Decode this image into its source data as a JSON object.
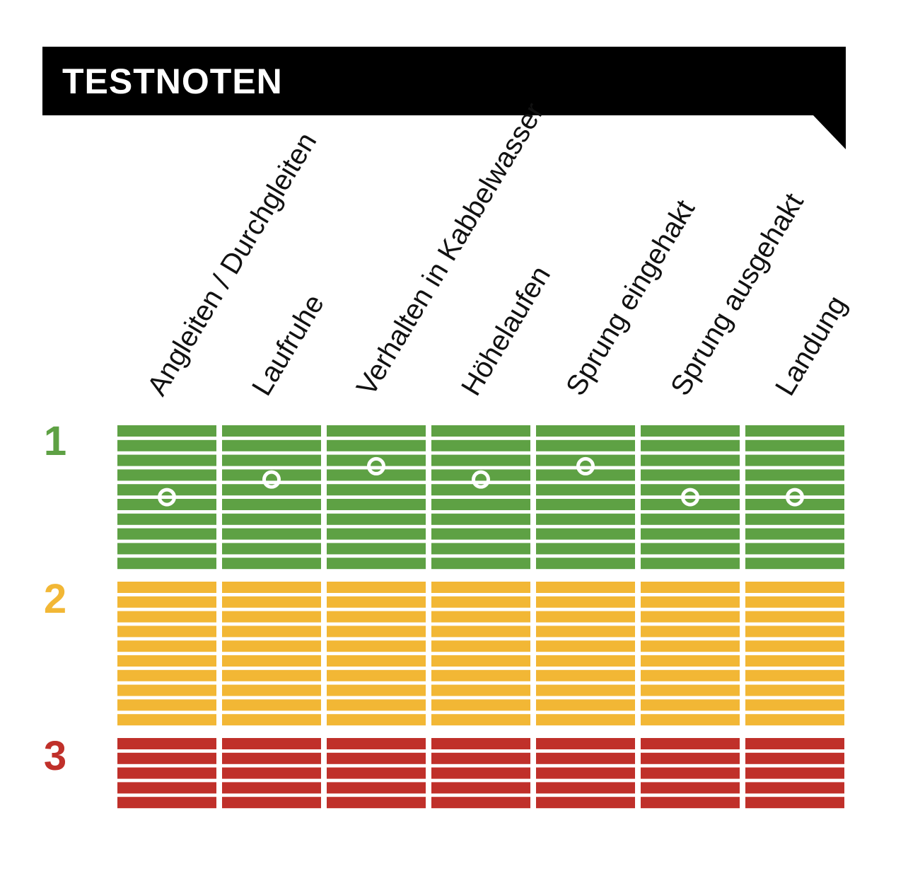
{
  "header": {
    "title": "TESTNOTEN"
  },
  "chart_data": {
    "type": "table",
    "columns": [
      "Angleiten / Durchgleiten",
      "Laufruhe",
      "Verhalten in Kabbelwasser",
      "Höhelaufen",
      "Sprung eingehakt",
      "Sprung ausgehakt",
      "Landung"
    ],
    "grades": [
      {
        "label": "1",
        "color": "#5ea144",
        "steps": 10
      },
      {
        "label": "2",
        "color": "#f2b735",
        "steps": 10
      },
      {
        "label": "3",
        "color": "#c0302a",
        "steps": 5
      }
    ],
    "scale_direction": "top = best (1), bottom = worst (3)",
    "values": [
      1.45,
      1.33,
      1.24,
      1.33,
      1.24,
      1.45,
      1.45
    ],
    "marker": "white ring"
  },
  "colors": {
    "banner": "#000000",
    "grade_1": "#5ea144",
    "grade_2": "#f2b735",
    "grade_3": "#c0302a",
    "marker": "#ffffff"
  }
}
